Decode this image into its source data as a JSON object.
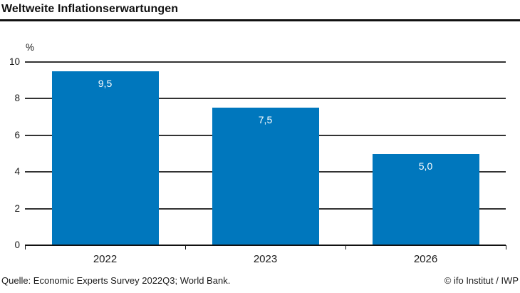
{
  "header": {
    "title": "Weltweite Inflationserwartungen"
  },
  "chart_data": {
    "type": "bar",
    "title": "Weltweite Inflationserwartungen",
    "categories": [
      "2022",
      "2023",
      "2026"
    ],
    "values": [
      9.5,
      7.5,
      5.0
    ],
    "value_labels": [
      "9,5",
      "7,5",
      "5,0"
    ],
    "xlabel": "",
    "ylabel": "%",
    "ylim": [
      0,
      10
    ],
    "yticks": [
      0,
      2,
      4,
      6,
      8,
      10
    ],
    "grid": true,
    "legend": false,
    "bar_color": "#0077BD",
    "value_label_color": "#ffffff",
    "gridline_color": "#333333",
    "axis_color": "#111111"
  },
  "footer": {
    "source": "Quelle: Economic Experts Survey 2022Q3; World Bank.",
    "credit": "© ifo Institut / IWP"
  }
}
